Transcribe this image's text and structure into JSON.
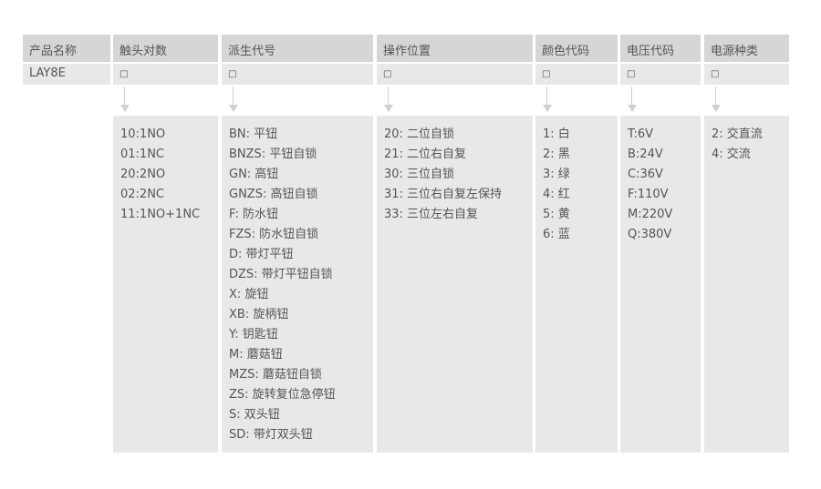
{
  "headers": [
    "产品名称",
    "触头对数",
    "派生代号",
    "操作位置",
    "颜色代码",
    "电压代码",
    "电源种类"
  ],
  "model": "LAY8E",
  "placeholder": "□",
  "columns": {
    "contacts": [
      "10:1NO",
      "01:1NC",
      "20:2NO",
      "02:2NC",
      "11:1NO+1NC"
    ],
    "derivative": [
      "BN: 平钮",
      "BNZS: 平钮自锁",
      "GN: 高钮",
      "GNZS: 高钮自锁",
      "F: 防水钮",
      "FZS: 防水钮自锁",
      "D: 带灯平钮",
      "DZS: 带灯平钮自锁",
      "X: 旋钮",
      "XB: 旋柄钮",
      "Y: 钥匙钮",
      "M: 蘑菇钮",
      "MZS: 蘑菇钮自锁",
      "ZS: 旋转复位急停钮",
      "S: 双头钮",
      "SD: 带灯双头钮"
    ],
    "operation": [
      "20: 二位自锁",
      "21: 二位右自复",
      "30: 三位自锁",
      "31: 三位右自复左保持",
      "33: 三位左右自复"
    ],
    "color": [
      "1: 白",
      "2: 黑",
      "3: 绿",
      "4: 红",
      "5: 黄",
      "6: 蓝"
    ],
    "voltage": [
      "T:6V",
      "B:24V",
      "C:36V",
      "F:110V",
      "M:220V",
      "Q:380V"
    ],
    "power": [
      "2: 交直流",
      "4: 交流"
    ]
  }
}
